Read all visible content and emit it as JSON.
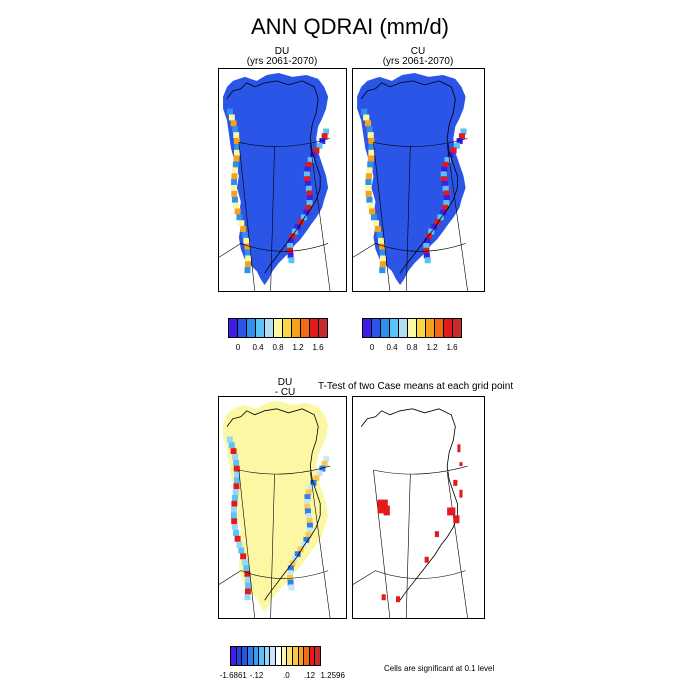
{
  "title": "ANN QDRAI (mm/d)",
  "panels": {
    "du": {
      "title_line1": "DU",
      "title_line2": "(yrs 2061-2070)"
    },
    "cu": {
      "title_line1": "CU",
      "title_line2": "(yrs 2061-2070)"
    },
    "diff": {
      "title_line1": "DU",
      "title_line2": "- CU"
    },
    "ttest": {
      "title": "T-Test of two Case means at each grid point"
    }
  },
  "colorbar_top": {
    "colors": [
      "#3b1ee8",
      "#2a55e6",
      "#2f8fef",
      "#59c3f5",
      "#b3def2",
      "#fbf7a3",
      "#f9d64a",
      "#f4a11d",
      "#ee6b18",
      "#e31a1c",
      "#c82b2b"
    ],
    "tick_labels": [
      "0",
      "0.4",
      "0.8",
      "1.2",
      "1.6"
    ]
  },
  "colorbar_diff": {
    "colors": [
      "#3b1ee8",
      "#2a3ee6",
      "#2a55e6",
      "#2f7eec",
      "#3d9ff2",
      "#59c3f5",
      "#96d7f6",
      "#c6e8f6",
      "#ffffff",
      "#fbf7a3",
      "#f9e37a",
      "#f9c84a",
      "#f4a11d",
      "#ee6b18",
      "#e31a1c",
      "#c82b2b"
    ],
    "tick_labels": [
      "-1.6861",
      "-.12",
      ".0",
      ".12",
      "1.2596"
    ]
  },
  "significance_note": "Cells are significant at 0.1 level",
  "chart_data": [
    {
      "type": "heatmap",
      "title": "DU",
      "subtitle": "(yrs 2061-2070)",
      "colorbar_ticks": [
        0,
        0.4,
        0.8,
        1.2,
        1.6
      ],
      "region": "Greenland"
    },
    {
      "type": "heatmap",
      "title": "CU",
      "subtitle": "(yrs 2061-2070)",
      "colorbar_ticks": [
        0,
        0.4,
        0.8,
        1.2,
        1.6
      ],
      "region": "Greenland"
    },
    {
      "type": "heatmap",
      "title": "DU - CU",
      "colorbar_range": [
        -1.6861,
        1.2596
      ],
      "colorbar_ticks": [
        "-1.6861",
        "-.12",
        ".0",
        ".12",
        "1.2596"
      ],
      "region": "Greenland"
    },
    {
      "type": "heatmap",
      "title": "T-Test of two Case means at each grid point",
      "note": "Cells are significant at 0.1 level",
      "region": "Greenland"
    }
  ]
}
